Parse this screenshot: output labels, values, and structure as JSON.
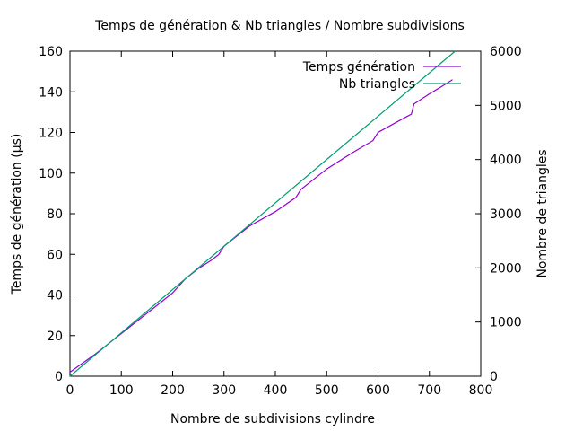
{
  "chart_data": {
    "type": "line",
    "title": "Temps de génération & Nb triangles / Nombre subdivisions",
    "xlabel": "Nombre de subdivisions cylindre",
    "ylabel": "Temps de génération (µs)",
    "y2label": "Nombre de triangles",
    "xlim": [
      0,
      800
    ],
    "ylim": [
      0,
      160
    ],
    "y2lim": [
      0,
      6000
    ],
    "xticks": [
      0,
      100,
      200,
      300,
      400,
      500,
      600,
      700,
      800
    ],
    "yticks": [
      0,
      20,
      40,
      60,
      80,
      100,
      120,
      140,
      160
    ],
    "y2ticks": [
      0,
      1000,
      2000,
      3000,
      4000,
      5000,
      6000
    ],
    "grid": false,
    "legend_position": "top-right",
    "series": [
      {
        "name": "Temps génération",
        "axis": "left",
        "color": "#9400d3",
        "x": [
          0,
          25,
          50,
          75,
          100,
          125,
          150,
          175,
          200,
          225,
          250,
          275,
          290,
          300,
          320,
          350,
          400,
          440,
          450,
          470,
          500,
          550,
          590,
          600,
          650,
          665,
          670,
          700,
          720,
          745
        ],
        "y": [
          2,
          6.5,
          11,
          16,
          21,
          26,
          31,
          36,
          41,
          48,
          53,
          57,
          60,
          64,
          68,
          74,
          81,
          88,
          92,
          96,
          102,
          110,
          116,
          120,
          127,
          129,
          134,
          139,
          142,
          146
        ]
      },
      {
        "name": "Nb triangles",
        "axis": "right",
        "color": "#009e73",
        "x": [
          0,
          750
        ],
        "y": [
          0,
          6000
        ]
      }
    ]
  }
}
